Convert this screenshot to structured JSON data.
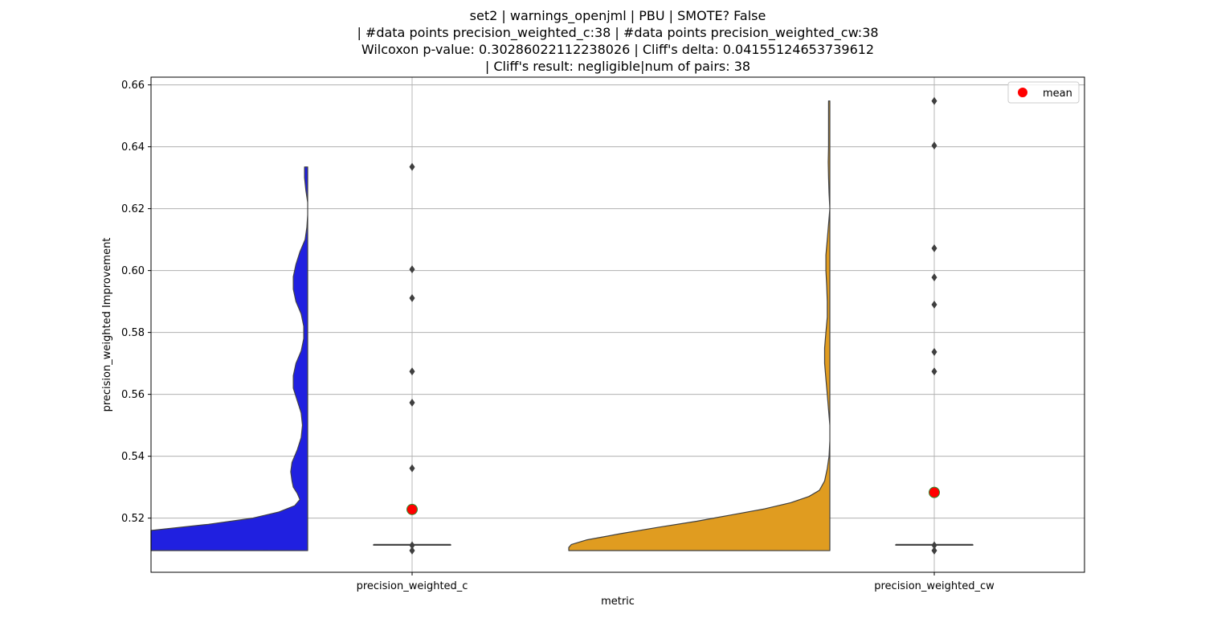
{
  "chart_data": {
    "type": "violin",
    "title_lines": [
      "set2 | warnings_openjml | PBU | SMOTE? False",
      "| #data points precision_weighted_c:38 | #data points precision_weighted_cw:38",
      "Wilcoxon p-value: 0.30286022112238026 | Cliff's delta: 0.04155124653739612",
      "| Cliff's result: negligible|num of pairs: 38"
    ],
    "xlabel": "metric",
    "ylabel": "precision_weighted Improvement",
    "categories": [
      "precision_weighted_c",
      "precision_weighted_cw"
    ],
    "ylim": [
      0.5025,
      0.6625
    ],
    "yticks": [
      0.52,
      0.54,
      0.56,
      0.58,
      0.6,
      0.62,
      0.64,
      0.66
    ],
    "ytick_labels": [
      "0.52",
      "0.54",
      "0.56",
      "0.58",
      "0.60",
      "0.62",
      "0.64",
      "0.66"
    ],
    "grid": true,
    "legend": {
      "position": "top-right",
      "entries": [
        {
          "label": "mean",
          "marker": "circle",
          "color": "#ff0000"
        }
      ]
    },
    "series": [
      {
        "category": "precision_weighted_c",
        "color": "#2020e0",
        "min": 0.5095,
        "max": 0.6335,
        "median": 0.5114,
        "q1": 0.5114,
        "q3": 0.5114,
        "mean": 0.5228,
        "outliers": [
          0.6335,
          0.6004,
          0.5911,
          0.5674,
          0.5573,
          0.5361,
          0.5112,
          0.5095
        ],
        "density": [
          [
            0.5095,
            1.0
          ],
          [
            0.512,
            0.99
          ],
          [
            0.514,
            0.99
          ],
          [
            0.516,
            0.63
          ],
          [
            0.518,
            0.38
          ],
          [
            0.52,
            0.21
          ],
          [
            0.522,
            0.11
          ],
          [
            0.524,
            0.05
          ],
          [
            0.526,
            0.03
          ],
          [
            0.528,
            0.04
          ],
          [
            0.53,
            0.055
          ],
          [
            0.532,
            0.06
          ],
          [
            0.535,
            0.065
          ],
          [
            0.538,
            0.06
          ],
          [
            0.542,
            0.04
          ],
          [
            0.546,
            0.025
          ],
          [
            0.55,
            0.02
          ],
          [
            0.554,
            0.025
          ],
          [
            0.558,
            0.04
          ],
          [
            0.562,
            0.055
          ],
          [
            0.566,
            0.055
          ],
          [
            0.57,
            0.045
          ],
          [
            0.574,
            0.025
          ],
          [
            0.578,
            0.015
          ],
          [
            0.582,
            0.015
          ],
          [
            0.586,
            0.025
          ],
          [
            0.59,
            0.045
          ],
          [
            0.594,
            0.055
          ],
          [
            0.598,
            0.055
          ],
          [
            0.602,
            0.045
          ],
          [
            0.606,
            0.03
          ],
          [
            0.61,
            0.01
          ],
          [
            0.614,
            0.003
          ],
          [
            0.618,
            0.0
          ],
          [
            0.622,
            0.0
          ],
          [
            0.626,
            0.007
          ],
          [
            0.63,
            0.012
          ],
          [
            0.6335,
            0.012
          ]
        ]
      },
      {
        "category": "precision_weighted_cw",
        "color": "#e09c20",
        "min": 0.5095,
        "max": 0.6548,
        "median": 0.5114,
        "q1": 0.5114,
        "q3": 0.5114,
        "mean": 0.5283,
        "outliers": [
          0.6548,
          0.6404,
          0.6072,
          0.5978,
          0.589,
          0.5737,
          0.5674,
          0.5112,
          0.5095
        ],
        "density": [
          [
            0.5095,
            1.0
          ],
          [
            0.5105,
            1.0
          ],
          [
            0.5115,
            0.99
          ],
          [
            0.513,
            0.93
          ],
          [
            0.515,
            0.8
          ],
          [
            0.517,
            0.66
          ],
          [
            0.519,
            0.51
          ],
          [
            0.521,
            0.38
          ],
          [
            0.523,
            0.25
          ],
          [
            0.525,
            0.15
          ],
          [
            0.527,
            0.08
          ],
          [
            0.529,
            0.04
          ],
          [
            0.532,
            0.02
          ],
          [
            0.536,
            0.01
          ],
          [
            0.54,
            0.003
          ],
          [
            0.545,
            0.0
          ],
          [
            0.55,
            0.0
          ],
          [
            0.555,
            0.005
          ],
          [
            0.56,
            0.01
          ],
          [
            0.565,
            0.015
          ],
          [
            0.57,
            0.02
          ],
          [
            0.575,
            0.02
          ],
          [
            0.58,
            0.015
          ],
          [
            0.585,
            0.01
          ],
          [
            0.59,
            0.01
          ],
          [
            0.595,
            0.012
          ],
          [
            0.6,
            0.015
          ],
          [
            0.605,
            0.015
          ],
          [
            0.61,
            0.01
          ],
          [
            0.615,
            0.005
          ],
          [
            0.62,
            0.0
          ],
          [
            0.625,
            0.003
          ],
          [
            0.63,
            0.005
          ],
          [
            0.635,
            0.006
          ],
          [
            0.64,
            0.005
          ],
          [
            0.645,
            0.005
          ],
          [
            0.65,
            0.005
          ],
          [
            0.6548,
            0.005
          ]
        ]
      }
    ]
  }
}
